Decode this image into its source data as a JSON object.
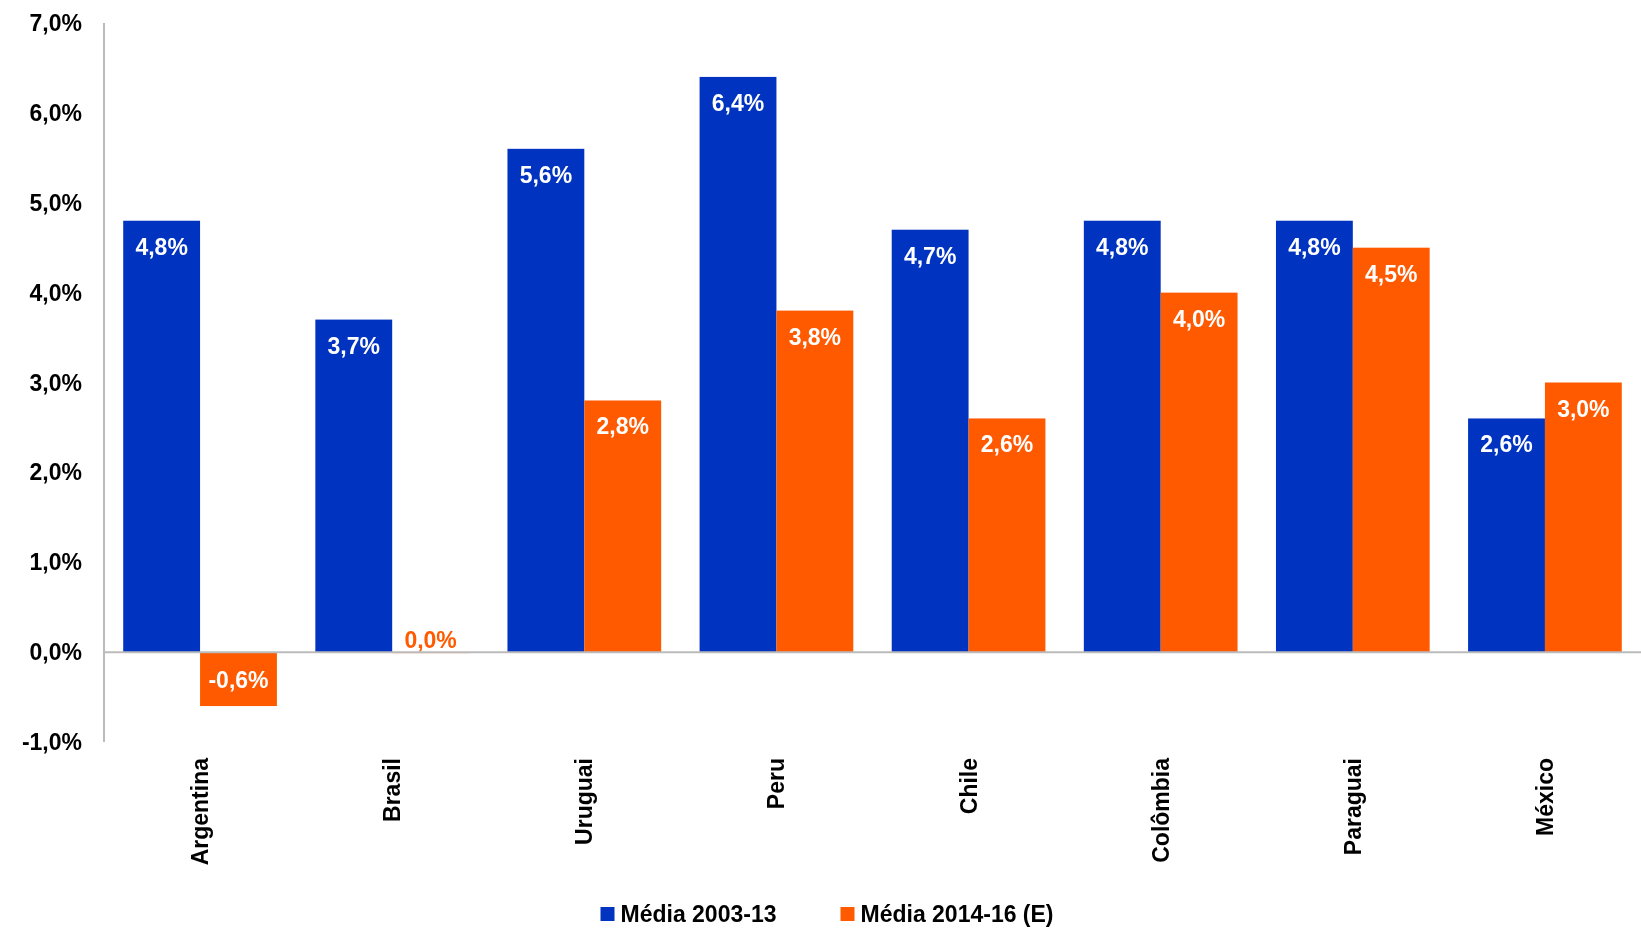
{
  "chart_data": {
    "type": "bar",
    "categories": [
      "Argentina",
      "Brasil",
      "Uruguai",
      "Peru",
      "Chile",
      "Colômbia",
      "Paraguai",
      "México"
    ],
    "series": [
      {
        "name": "Média 2003-13",
        "color": "#0033c0",
        "values": [
          4.8,
          3.7,
          5.6,
          6.4,
          4.7,
          4.8,
          4.8,
          2.6
        ],
        "value_labels": [
          "4,8%",
          "3,7%",
          "5,6%",
          "6,4%",
          "4,7%",
          "4,8%",
          "4,8%",
          "2,6%"
        ]
      },
      {
        "name": "Média 2014-16 (E)",
        "color": "#ff5a00",
        "values": [
          -0.6,
          0.0,
          2.8,
          3.8,
          2.6,
          4.0,
          4.5,
          3.0
        ],
        "value_labels": [
          "-0,6%",
          "0,0%",
          "2,8%",
          "3,8%",
          "2,6%",
          "4,0%",
          "4,5%",
          "3,0%"
        ]
      }
    ],
    "ylim": [
      -1,
      7
    ],
    "yticks": [
      {
        "value": -1,
        "label": "-1,0%"
      },
      {
        "value": 0,
        "label": "0,0%"
      },
      {
        "value": 1,
        "label": "1,0%"
      },
      {
        "value": 2,
        "label": "2,0%"
      },
      {
        "value": 3,
        "label": "3,0%"
      },
      {
        "value": 4,
        "label": "4,0%"
      },
      {
        "value": 5,
        "label": "5,0%"
      },
      {
        "value": 6,
        "label": "6,0%"
      },
      {
        "value": 7,
        "label": "7,0%"
      }
    ],
    "legend": "bottom"
  }
}
